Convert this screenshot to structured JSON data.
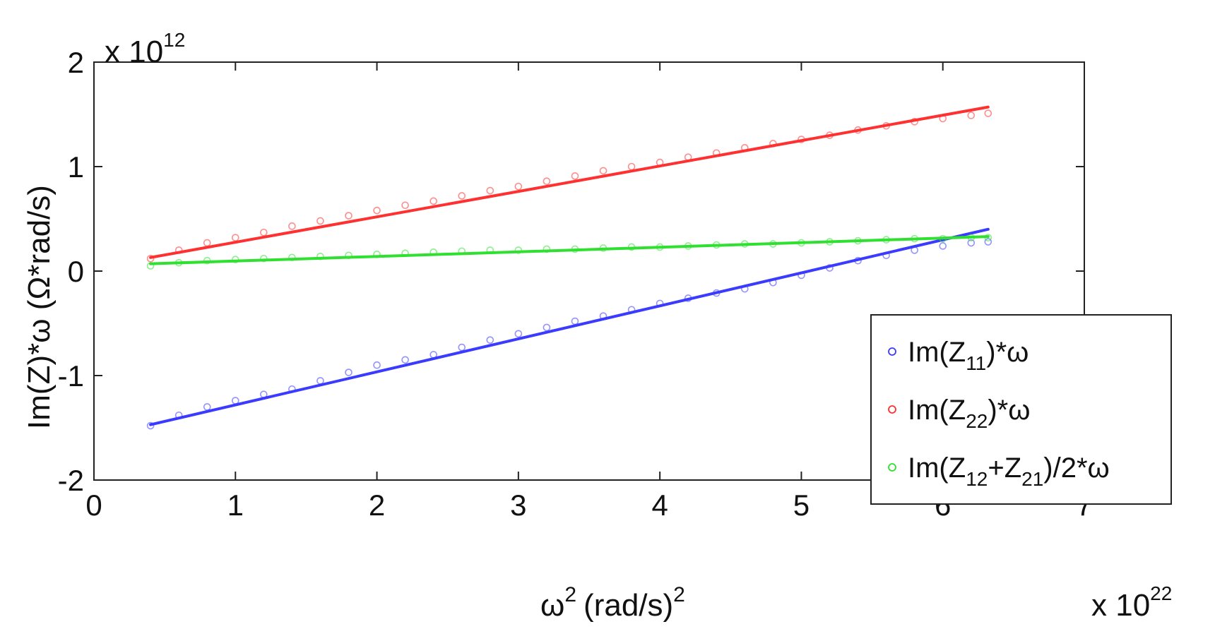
{
  "chart_data": {
    "type": "scatter",
    "xlabel": {
      "main": "ω",
      "sup": "2",
      "unit": "(rad/s)",
      "unit_sup": "2"
    },
    "ylabel": "Im(Z)*ω (Ω*rad/s)",
    "x_multiplier": {
      "base": "x 10",
      "exp": "22"
    },
    "y_multiplier": {
      "base": "x 10",
      "exp": "12"
    },
    "xlim": [
      0,
      7
    ],
    "ylim": [
      -2,
      2
    ],
    "xticks": [
      0,
      1,
      2,
      3,
      4,
      5,
      6,
      7
    ],
    "yticks": [
      -2,
      -1,
      0,
      1,
      2
    ],
    "xtick_labels": [
      "0",
      "1",
      "2",
      "3",
      "4",
      "5",
      "6",
      "7"
    ],
    "ytick_labels": [
      "-2",
      "-1",
      "0",
      "1",
      "2"
    ],
    "grid": false,
    "legend_position": "bottom-right",
    "series": [
      {
        "name": "Im(Z11)*ω",
        "legend": {
          "pre": "Im(Z",
          "sub1": "11",
          "mid": ")*ω",
          "sub2": "",
          "post": ""
        },
        "color": "#3b3bff",
        "marker_x": [
          0.4,
          0.6,
          0.8,
          1.0,
          1.2,
          1.4,
          1.6,
          1.8,
          2.0,
          2.2,
          2.4,
          2.6,
          2.8,
          3.0,
          3.2,
          3.4,
          3.6,
          3.8,
          4.0,
          4.2,
          4.4,
          4.6,
          4.8,
          5.0,
          5.2,
          5.4,
          5.6,
          5.8,
          6.0,
          6.2,
          6.32
        ],
        "marker_y": [
          -1.48,
          -1.38,
          -1.3,
          -1.24,
          -1.18,
          -1.13,
          -1.05,
          -0.97,
          -0.9,
          -0.85,
          -0.8,
          -0.73,
          -0.66,
          -0.6,
          -0.54,
          -0.48,
          -0.43,
          -0.37,
          -0.31,
          -0.26,
          -0.21,
          -0.17,
          -0.11,
          -0.04,
          0.03,
          0.1,
          0.15,
          0.2,
          0.24,
          0.27,
          0.28
        ],
        "fit_x": [
          0.4,
          6.32
        ],
        "fit_y": [
          -1.47,
          0.4
        ]
      },
      {
        "name": "Im(Z22)*ω",
        "legend": {
          "pre": "Im(Z",
          "sub1": "22",
          "mid": ")*ω",
          "sub2": "",
          "post": ""
        },
        "color": "#ff3030",
        "marker_x": [
          0.4,
          0.6,
          0.8,
          1.0,
          1.2,
          1.4,
          1.6,
          1.8,
          2.0,
          2.2,
          2.4,
          2.6,
          2.8,
          3.0,
          3.2,
          3.4,
          3.6,
          3.8,
          4.0,
          4.2,
          4.4,
          4.6,
          4.8,
          5.0,
          5.2,
          5.4,
          5.6,
          5.8,
          6.0,
          6.2,
          6.32
        ],
        "marker_y": [
          0.12,
          0.2,
          0.27,
          0.32,
          0.37,
          0.43,
          0.48,
          0.53,
          0.58,
          0.63,
          0.67,
          0.72,
          0.77,
          0.81,
          0.86,
          0.91,
          0.96,
          1.0,
          1.04,
          1.09,
          1.13,
          1.18,
          1.22,
          1.26,
          1.3,
          1.35,
          1.39,
          1.43,
          1.46,
          1.49,
          1.51
        ],
        "fit_x": [
          0.4,
          6.32
        ],
        "fit_y": [
          0.13,
          1.57
        ]
      },
      {
        "name": "Im(Z12+Z21)/2*ω",
        "legend": {
          "pre": "Im(Z",
          "sub1": "12",
          "mid": "+Z",
          "sub2": "21",
          "post": ")/2*ω"
        },
        "color": "#30e030",
        "marker_x": [
          0.4,
          0.6,
          0.8,
          1.0,
          1.2,
          1.4,
          1.6,
          1.8,
          2.0,
          2.2,
          2.4,
          2.6,
          2.8,
          3.0,
          3.2,
          3.4,
          3.6,
          3.8,
          4.0,
          4.2,
          4.4,
          4.6,
          4.8,
          5.0,
          5.2,
          5.4,
          5.6,
          5.8,
          6.0,
          6.2,
          6.32
        ],
        "marker_y": [
          0.05,
          0.08,
          0.1,
          0.11,
          0.12,
          0.13,
          0.14,
          0.15,
          0.16,
          0.17,
          0.18,
          0.19,
          0.2,
          0.2,
          0.21,
          0.21,
          0.22,
          0.23,
          0.23,
          0.24,
          0.25,
          0.26,
          0.26,
          0.27,
          0.28,
          0.29,
          0.3,
          0.31,
          0.31,
          0.32,
          0.32
        ],
        "fit_x": [
          0.4,
          6.32
        ],
        "fit_y": [
          0.07,
          0.33
        ]
      }
    ]
  }
}
